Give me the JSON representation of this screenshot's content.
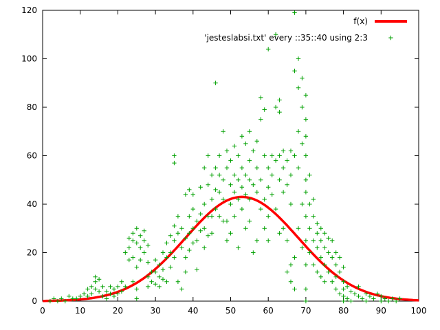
{
  "chart_data": {
    "type": "scatter",
    "title": "",
    "xlabel": "",
    "ylabel": "",
    "xlim": [
      0,
      100
    ],
    "ylim": [
      0,
      120
    ],
    "xticks": [
      0,
      10,
      20,
      30,
      40,
      50,
      60,
      70,
      80,
      90,
      100
    ],
    "yticks": [
      0,
      20,
      40,
      60,
      80,
      100,
      120
    ],
    "grid": false,
    "legend_position": "top-right",
    "background": "#ffffff",
    "border_color": "#000000",
    "series": [
      {
        "name": "f(x)",
        "type": "line",
        "color": "#ff0000",
        "line_width": 3.5,
        "curve": {
          "kind": "gaussian",
          "amplitude": 43,
          "mean": 53,
          "sigma": 15
        }
      },
      {
        "name": "'jesteslabsi.txt' every ::35::40 using 2:3",
        "type": "points",
        "marker": "plus",
        "color": "#00a000",
        "points": [
          [
            2,
            0
          ],
          [
            3,
            1
          ],
          [
            4,
            0
          ],
          [
            5,
            1
          ],
          [
            6,
            0
          ],
          [
            7,
            2
          ],
          [
            8,
            1
          ],
          [
            9,
            1
          ],
          [
            10,
            2
          ],
          [
            11,
            3
          ],
          [
            12,
            2
          ],
          [
            12,
            5
          ],
          [
            13,
            6
          ],
          [
            13,
            3
          ],
          [
            14,
            8
          ],
          [
            14,
            5
          ],
          [
            14,
            10
          ],
          [
            15,
            9
          ],
          [
            15,
            4
          ],
          [
            16,
            2
          ],
          [
            16,
            6
          ],
          [
            17,
            4
          ],
          [
            17,
            1
          ],
          [
            18,
            3
          ],
          [
            18,
            6
          ],
          [
            19,
            5
          ],
          [
            19,
            2
          ],
          [
            20,
            6
          ],
          [
            20,
            3
          ],
          [
            21,
            8
          ],
          [
            21,
            4
          ],
          [
            22,
            6
          ],
          [
            22,
            20
          ],
          [
            23,
            22
          ],
          [
            23,
            26
          ],
          [
            23,
            17
          ],
          [
            24,
            25
          ],
          [
            24,
            28
          ],
          [
            24,
            18
          ],
          [
            24,
            8
          ],
          [
            25,
            24
          ],
          [
            25,
            30
          ],
          [
            25,
            14
          ],
          [
            25,
            5
          ],
          [
            25,
            1
          ],
          [
            26,
            22
          ],
          [
            26,
            27
          ],
          [
            26,
            17
          ],
          [
            27,
            25
          ],
          [
            27,
            20
          ],
          [
            27,
            29
          ],
          [
            28,
            6
          ],
          [
            28,
            10
          ],
          [
            28,
            23
          ],
          [
            28,
            16
          ],
          [
            29,
            8
          ],
          [
            29,
            12
          ],
          [
            30,
            12
          ],
          [
            30,
            7
          ],
          [
            30,
            17
          ],
          [
            31,
            10
          ],
          [
            31,
            15
          ],
          [
            31,
            6
          ],
          [
            32,
            9
          ],
          [
            32,
            13
          ],
          [
            32,
            20
          ],
          [
            33,
            18
          ],
          [
            33,
            8
          ],
          [
            33,
            24
          ],
          [
            34,
            20
          ],
          [
            34,
            14
          ],
          [
            34,
            27
          ],
          [
            35,
            25
          ],
          [
            35,
            31
          ],
          [
            35,
            57
          ],
          [
            35,
            60
          ],
          [
            35,
            18
          ],
          [
            36,
            35
          ],
          [
            36,
            28
          ],
          [
            36,
            8
          ],
          [
            37,
            22
          ],
          [
            37,
            30
          ],
          [
            37,
            5
          ],
          [
            38,
            26
          ],
          [
            38,
            18
          ],
          [
            38,
            12
          ],
          [
            38,
            44
          ],
          [
            39,
            28
          ],
          [
            39,
            35
          ],
          [
            39,
            46
          ],
          [
            39,
            21
          ],
          [
            40,
            30
          ],
          [
            40,
            38
          ],
          [
            40,
            44
          ],
          [
            40,
            24
          ],
          [
            41,
            25
          ],
          [
            41,
            33
          ],
          [
            41,
            13
          ],
          [
            42,
            36
          ],
          [
            42,
            47
          ],
          [
            42,
            29
          ],
          [
            43,
            30
          ],
          [
            43,
            40
          ],
          [
            43,
            55
          ],
          [
            43,
            22
          ],
          [
            44,
            35
          ],
          [
            44,
            48
          ],
          [
            44,
            60
          ],
          [
            44,
            27
          ],
          [
            45,
            42
          ],
          [
            45,
            28
          ],
          [
            45,
            52
          ],
          [
            45,
            35
          ],
          [
            46,
            90
          ],
          [
            46,
            55
          ],
          [
            46,
            38
          ],
          [
            46,
            46
          ],
          [
            47,
            45
          ],
          [
            47,
            60
          ],
          [
            47,
            35
          ],
          [
            47,
            52
          ],
          [
            48,
            50
          ],
          [
            48,
            42
          ],
          [
            48,
            70
          ],
          [
            48,
            33
          ],
          [
            49,
            55
          ],
          [
            49,
            33
          ],
          [
            49,
            62
          ],
          [
            49,
            25
          ],
          [
            50,
            48
          ],
          [
            50,
            40
          ],
          [
            50,
            58
          ],
          [
            50,
            28
          ],
          [
            51,
            45
          ],
          [
            51,
            52
          ],
          [
            51,
            35
          ],
          [
            51,
            64
          ],
          [
            52,
            60
          ],
          [
            52,
            42
          ],
          [
            52,
            50
          ],
          [
            52,
            22
          ],
          [
            53,
            47
          ],
          [
            53,
            55
          ],
          [
            53,
            38
          ],
          [
            53,
            68
          ],
          [
            54,
            44
          ],
          [
            54,
            65
          ],
          [
            54,
            30
          ],
          [
            54,
            52
          ],
          [
            55,
            50
          ],
          [
            55,
            70
          ],
          [
            55,
            42
          ],
          [
            55,
            58
          ],
          [
            55,
            33
          ],
          [
            56,
            48
          ],
          [
            56,
            62
          ],
          [
            56,
            20
          ],
          [
            57,
            55
          ],
          [
            57,
            45
          ],
          [
            57,
            25
          ],
          [
            57,
            66
          ],
          [
            58,
            50
          ],
          [
            58,
            38
          ],
          [
            58,
            75
          ],
          [
            58,
            84
          ],
          [
            59,
            60
          ],
          [
            59,
            42
          ],
          [
            59,
            79
          ],
          [
            59,
            30
          ],
          [
            60,
            104
          ],
          [
            60,
            55
          ],
          [
            60,
            35
          ],
          [
            60,
            47
          ],
          [
            60,
            25
          ],
          [
            61,
            52
          ],
          [
            61,
            44
          ],
          [
            61,
            60
          ],
          [
            62,
            110
          ],
          [
            62,
            80
          ],
          [
            62,
            58
          ],
          [
            62,
            38
          ],
          [
            63,
            83
          ],
          [
            63,
            78
          ],
          [
            63,
            50
          ],
          [
            63,
            60
          ],
          [
            63,
            28
          ],
          [
            64,
            45
          ],
          [
            64,
            55
          ],
          [
            64,
            30
          ],
          [
            64,
            62
          ],
          [
            65,
            48
          ],
          [
            65,
            58
          ],
          [
            65,
            25
          ],
          [
            65,
            12
          ],
          [
            66,
            40
          ],
          [
            66,
            52
          ],
          [
            66,
            62
          ],
          [
            66,
            8
          ],
          [
            66,
            15
          ],
          [
            67,
            119
          ],
          [
            67,
            95
          ],
          [
            67,
            60
          ],
          [
            67,
            5
          ],
          [
            67,
            18
          ],
          [
            68,
            100
          ],
          [
            68,
            88
          ],
          [
            68,
            70
          ],
          [
            68,
            55
          ],
          [
            68,
            30
          ],
          [
            69,
            92
          ],
          [
            69,
            80
          ],
          [
            69,
            65
          ],
          [
            69,
            40
          ],
          [
            69,
            22
          ],
          [
            70,
            85
          ],
          [
            70,
            75
          ],
          [
            70,
            60
          ],
          [
            70,
            50
          ],
          [
            70,
            35
          ],
          [
            70,
            25
          ],
          [
            70,
            15
          ],
          [
            70,
            5
          ],
          [
            70,
            0
          ],
          [
            70,
            45
          ],
          [
            70,
            68
          ],
          [
            71,
            30
          ],
          [
            71,
            40
          ],
          [
            71,
            20
          ],
          [
            71,
            52
          ],
          [
            72,
            35
          ],
          [
            72,
            25
          ],
          [
            72,
            15
          ],
          [
            72,
            42
          ],
          [
            73,
            28
          ],
          [
            73,
            22
          ],
          [
            73,
            32
          ],
          [
            73,
            12
          ],
          [
            74,
            25
          ],
          [
            74,
            18
          ],
          [
            74,
            30
          ],
          [
            74,
            10
          ],
          [
            75,
            22
          ],
          [
            75,
            15
          ],
          [
            75,
            28
          ],
          [
            75,
            8
          ],
          [
            76,
            20
          ],
          [
            76,
            12
          ],
          [
            76,
            26
          ],
          [
            77,
            18
          ],
          [
            77,
            8
          ],
          [
            77,
            25
          ],
          [
            78,
            15
          ],
          [
            78,
            5
          ],
          [
            78,
            10
          ],
          [
            78,
            20
          ],
          [
            79,
            12
          ],
          [
            79,
            3
          ],
          [
            79,
            18
          ],
          [
            80,
            8
          ],
          [
            80,
            2
          ],
          [
            80,
            14
          ],
          [
            80,
            0
          ],
          [
            80,
            5
          ],
          [
            81,
            6
          ],
          [
            81,
            1
          ],
          [
            82,
            4
          ],
          [
            82,
            0
          ],
          [
            83,
            3
          ],
          [
            84,
            2
          ],
          [
            84,
            6
          ],
          [
            85,
            1
          ],
          [
            86,
            3
          ],
          [
            86,
            0
          ],
          [
            87,
            2
          ],
          [
            88,
            1
          ],
          [
            89,
            3
          ],
          [
            90,
            0
          ],
          [
            90,
            2
          ],
          [
            91,
            1
          ],
          [
            92,
            0
          ],
          [
            93,
            1
          ],
          [
            94,
            0
          ],
          [
            95,
            1
          ]
        ]
      }
    ]
  }
}
